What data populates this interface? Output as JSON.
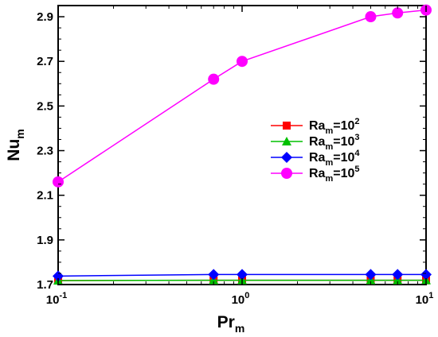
{
  "chart_data": {
    "type": "line",
    "x_scale": "log",
    "xlim": [
      0.1,
      10
    ],
    "ylim": [
      1.7,
      2.95
    ],
    "xlabel": {
      "main": "Pr",
      "sub": "m"
    },
    "ylabel": {
      "main": "Nu",
      "sub": "m"
    },
    "x_ticks": [
      {
        "value": 0.1,
        "base": "10",
        "exp": "-1"
      },
      {
        "value": 1,
        "base": "10",
        "exp": "0"
      },
      {
        "value": 10,
        "base": "10",
        "exp": "1"
      }
    ],
    "y_ticks": [
      1.7,
      1.9,
      2.1,
      2.3,
      2.5,
      2.7,
      2.9
    ],
    "y_tick_labels": [
      "1.7",
      "1.9",
      "2.1",
      "2.3",
      "2.5",
      "2.7",
      "2.9"
    ],
    "grid": false,
    "legend_position": "right",
    "x": [
      0.1,
      0.7,
      1,
      5,
      7,
      10
    ],
    "series": [
      {
        "name": {
          "base": "Ra",
          "sub": "m",
          "eq": "=10",
          "exp": "2"
        },
        "color": "#ff0000",
        "marker": "square",
        "values": [
          1.718,
          1.719,
          1.719,
          1.719,
          1.719,
          1.719
        ]
      },
      {
        "name": {
          "base": "Ra",
          "sub": "m",
          "eq": "=10",
          "exp": "3"
        },
        "color": "#00c000",
        "marker": "triangle",
        "values": [
          1.718,
          1.719,
          1.719,
          1.719,
          1.719,
          1.719
        ]
      },
      {
        "name": {
          "base": "Ra",
          "sub": "m",
          "eq": "=10",
          "exp": "4"
        },
        "color": "#0000ff",
        "marker": "diamond",
        "values": [
          1.738,
          1.745,
          1.745,
          1.745,
          1.745,
          1.745
        ]
      },
      {
        "name": {
          "base": "Ra",
          "sub": "m",
          "eq": "=10",
          "exp": "5"
        },
        "color": "#ff00ff",
        "marker": "circle",
        "values": [
          2.16,
          2.62,
          2.7,
          2.9,
          2.917,
          2.93
        ]
      }
    ]
  }
}
